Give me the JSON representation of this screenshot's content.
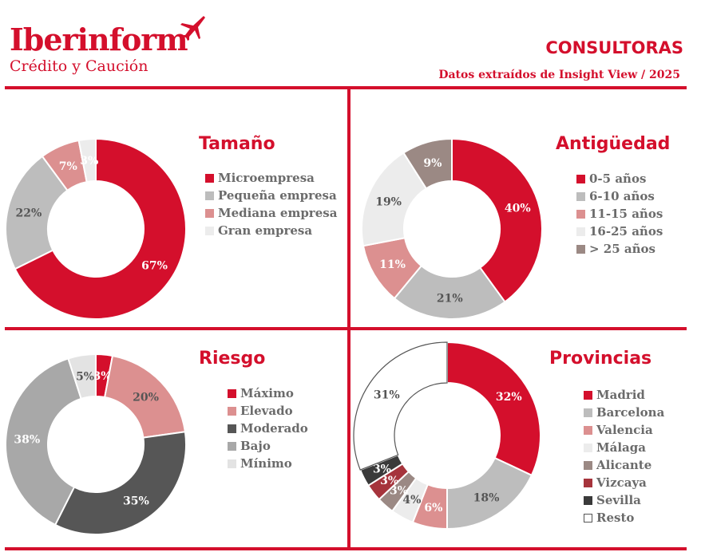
{
  "header": {
    "brand_name": "Iberinform",
    "brand_sub": "Crédito y Caución",
    "title": "CONSULTORAS",
    "subtitle": "Datos extraídos de Insight View / 2025",
    "brand_color": "#d40f2c"
  },
  "chart_data": [
    {
      "type": "pie",
      "title": "Tamaño",
      "categories": [
        "Microempresa",
        "Pequeña empresa",
        "Mediana empresa",
        "Gran empresa"
      ],
      "values": [
        67,
        22,
        7,
        3
      ],
      "labels": [
        "67%",
        "22%",
        "7%",
        "3%"
      ],
      "colors": [
        "#d40f2c",
        "#bdbdbd",
        "#dc9090",
        "#ececec"
      ],
      "label_colors": [
        "#ffffff",
        "#555555",
        "#ffffff",
        "#ffffff"
      ],
      "donut": true,
      "legend": "right"
    },
    {
      "type": "pie",
      "title": "Antigüedad",
      "categories": [
        "0-5 años",
        "6-10 años",
        "11-15 años",
        "16-25 años",
        "> 25 años"
      ],
      "values": [
        40,
        21,
        11,
        19,
        9
      ],
      "labels": [
        "40%",
        "21%",
        "11%",
        "19%",
        "9%"
      ],
      "colors": [
        "#d40f2c",
        "#bdbdbd",
        "#dc9090",
        "#ececec",
        "#9b8984"
      ],
      "label_colors": [
        "#ffffff",
        "#555555",
        "#ffffff",
        "#555555",
        "#ffffff"
      ],
      "donut": true,
      "legend": "right"
    },
    {
      "type": "pie",
      "title": "Riesgo",
      "categories": [
        "Máximo",
        "Elevado",
        "Moderado",
        "Bajo",
        "Mínimo"
      ],
      "values": [
        3,
        20,
        35,
        38,
        5
      ],
      "labels": [
        "3%",
        "20%",
        "35%",
        "38%",
        "5%"
      ],
      "colors": [
        "#d40f2c",
        "#dc9090",
        "#565656",
        "#a8a8a8",
        "#e3e3e3"
      ],
      "label_colors": [
        "#ffffff",
        "#555555",
        "#ffffff",
        "#ffffff",
        "#555555"
      ],
      "donut": true,
      "legend": "right"
    },
    {
      "type": "pie",
      "title": "Provincias",
      "categories": [
        "Madrid",
        "Barcelona",
        "Valencia",
        "Málaga",
        "Alicante",
        "Vizcaya",
        "Sevilla",
        "Resto"
      ],
      "values": [
        32,
        18,
        6,
        4,
        3,
        3,
        3,
        31
      ],
      "labels": [
        "32%",
        "18%",
        "6%",
        "4%",
        "3%",
        "3%",
        "3%",
        "31%"
      ],
      "colors": [
        "#d40f2c",
        "#bdbdbd",
        "#dc9090",
        "#ececec",
        "#9b8984",
        "#a6343c",
        "#3a3a3a",
        "#ffffff"
      ],
      "label_colors": [
        "#ffffff",
        "#555555",
        "#ffffff",
        "#555555",
        "#ffffff",
        "#ffffff",
        "#ffffff",
        "#555555"
      ],
      "donut": true,
      "legend": "right"
    }
  ]
}
